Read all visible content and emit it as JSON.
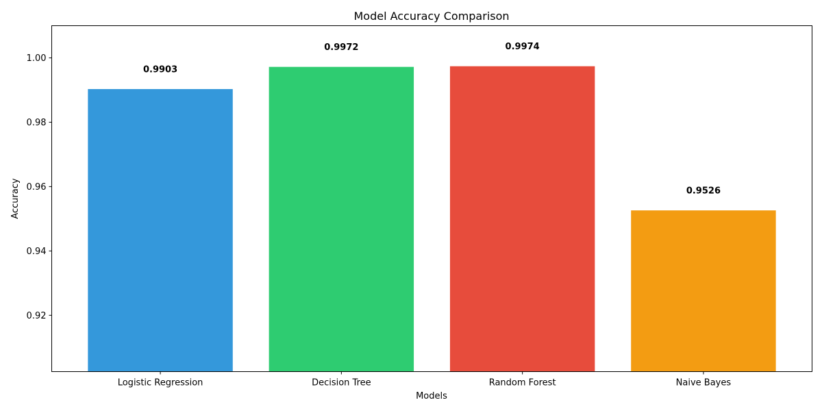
{
  "chart_data": {
    "type": "bar",
    "title": "Model Accuracy Comparison",
    "xlabel": "Models",
    "ylabel": "Accuracy",
    "categories": [
      "Logistic Regression",
      "Decision Tree",
      "Random Forest",
      "Naive Bayes"
    ],
    "values": [
      0.9903,
      0.9972,
      0.9974,
      0.9526
    ],
    "value_labels": [
      "0.9903",
      "0.9972",
      "0.9974",
      "0.9526"
    ],
    "colors": [
      "#3498db",
      "#2ecc71",
      "#e74c3c",
      "#f39c12"
    ],
    "ylim": [
      0.9025,
      1.01
    ],
    "yticks": [
      0.92,
      0.94,
      0.96,
      0.98,
      1.0
    ],
    "ytick_labels": [
      "0.92",
      "0.94",
      "0.96",
      "0.98",
      "1.00"
    ],
    "grid": false,
    "legend": "none"
  }
}
